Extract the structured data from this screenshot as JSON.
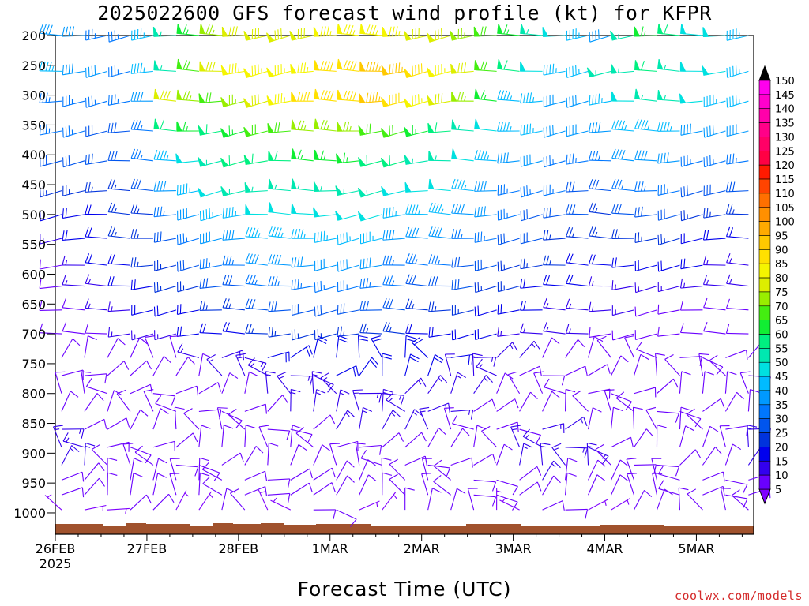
{
  "title": "2025022600 GFS forecast wind profile (kt) for KFPR",
  "credit": "coolwx.com/models",
  "chart_data": {
    "type": "wind-barb profile (time-height)",
    "title": "2025022600 GFS forecast wind profile (kt) for KFPR",
    "xlabel": "Forecast Time (UTC)",
    "ylabel": "",
    "y_axis": {
      "unit": "hPa",
      "reversed": true,
      "range": [
        1030,
        200
      ],
      "ticks": [
        200,
        250,
        300,
        350,
        400,
        450,
        500,
        550,
        600,
        650,
        700,
        750,
        800,
        850,
        900,
        950,
        1000
      ]
    },
    "x_axis": {
      "range_hours": [
        0,
        183
      ],
      "ticks": [
        {
          "hour": 0,
          "label": "26FEB",
          "sublabel": "2025"
        },
        {
          "hour": 24,
          "label": "27FEB"
        },
        {
          "hour": 48,
          "label": "28FEB"
        },
        {
          "hour": 72,
          "label": "1MAR"
        },
        {
          "hour": 96,
          "label": "2MAR"
        },
        {
          "hour": 120,
          "label": "3MAR"
        },
        {
          "hour": 144,
          "label": "4MAR"
        },
        {
          "hour": 168,
          "label": "5MAR"
        }
      ]
    },
    "colorbar": {
      "unit": "kt",
      "levels": [
        5,
        10,
        15,
        20,
        25,
        30,
        35,
        40,
        45,
        50,
        55,
        60,
        65,
        70,
        75,
        80,
        85,
        90,
        95,
        100,
        105,
        110,
        115,
        120,
        125,
        130,
        135,
        140,
        145,
        150
      ]
    },
    "barb_levels_hPa": [
      200,
      260,
      310,
      360,
      410,
      460,
      500,
      540,
      585,
      620,
      660,
      700,
      740,
      770,
      800,
      830,
      860,
      890,
      920,
      945,
      970,
      995
    ],
    "barb_times_hours": [
      0,
      6,
      12,
      18,
      24,
      30,
      36,
      42,
      48,
      54,
      60,
      66,
      72,
      78,
      84,
      90,
      96,
      102,
      108,
      114,
      120,
      126,
      132,
      138,
      144,
      150,
      156,
      162,
      168,
      174,
      180
    ],
    "speed_profile_kt": [
      {
        "p": 200,
        "spd": [
          40,
          40,
          35,
          35,
          45,
          55,
          65,
          75,
          80,
          80,
          80,
          80,
          85,
          85,
          85,
          85,
          80,
          80,
          75,
          70,
          65,
          55,
          50,
          45,
          40,
          55,
          65,
          60,
          50,
          50,
          45
        ]
      },
      {
        "p": 260,
        "spd": [
          45,
          40,
          40,
          35,
          45,
          55,
          70,
          80,
          85,
          85,
          85,
          85,
          90,
          90,
          95,
          95,
          90,
          85,
          80,
          70,
          60,
          50,
          45,
          45,
          55,
          55,
          60,
          55,
          50,
          50,
          45
        ]
      },
      {
        "p": 310,
        "spd": [
          35,
          35,
          35,
          35,
          40,
          80,
          75,
          70,
          75,
          80,
          85,
          90,
          90,
          90,
          95,
          90,
          85,
          80,
          75,
          65,
          45,
          45,
          40,
          40,
          45,
          50,
          55,
          55,
          50,
          45,
          45
        ]
      },
      {
        "p": 360,
        "spd": [
          35,
          35,
          30,
          30,
          35,
          60,
          65,
          60,
          65,
          70,
          70,
          75,
          75,
          75,
          70,
          70,
          65,
          60,
          55,
          50,
          45,
          45,
          40,
          40,
          40,
          45,
          45,
          45,
          40,
          40,
          40
        ]
      },
      {
        "p": 410,
        "spd": [
          30,
          30,
          30,
          30,
          35,
          45,
          50,
          55,
          60,
          60,
          60,
          65,
          65,
          65,
          60,
          60,
          55,
          55,
          50,
          45,
          40,
          40,
          35,
          35,
          35,
          40,
          40,
          40,
          35,
          35,
          35
        ]
      },
      {
        "p": 460,
        "spd": [
          25,
          25,
          25,
          25,
          30,
          40,
          45,
          50,
          55,
          55,
          55,
          55,
          55,
          55,
          55,
          50,
          50,
          50,
          45,
          40,
          35,
          35,
          35,
          30,
          30,
          35,
          35,
          35,
          30,
          30,
          30
        ]
      },
      {
        "p": 500,
        "spd": [
          20,
          20,
          20,
          25,
          25,
          35,
          40,
          45,
          45,
          50,
          50,
          50,
          50,
          50,
          50,
          45,
          45,
          45,
          40,
          40,
          35,
          30,
          30,
          30,
          25,
          30,
          30,
          30,
          25,
          25,
          25
        ]
      },
      {
        "p": 540,
        "spd": [
          15,
          20,
          20,
          25,
          25,
          30,
          35,
          40,
          40,
          45,
          45,
          45,
          45,
          45,
          45,
          40,
          40,
          40,
          35,
          35,
          30,
          30,
          25,
          25,
          25,
          25,
          25,
          25,
          20,
          20,
          20
        ]
      },
      {
        "p": 585,
        "spd": [
          10,
          15,
          20,
          20,
          25,
          25,
          30,
          35,
          35,
          40,
          40,
          40,
          40,
          40,
          40,
          35,
          35,
          35,
          30,
          30,
          25,
          25,
          25,
          20,
          20,
          20,
          20,
          20,
          20,
          15,
          15
        ]
      },
      {
        "p": 620,
        "spd": [
          10,
          15,
          15,
          20,
          20,
          25,
          25,
          30,
          30,
          35,
          35,
          35,
          35,
          35,
          35,
          35,
          30,
          30,
          30,
          25,
          25,
          20,
          20,
          20,
          15,
          15,
          15,
          15,
          15,
          15,
          15
        ]
      },
      {
        "p": 660,
        "spd": [
          10,
          10,
          15,
          15,
          20,
          20,
          20,
          25,
          25,
          30,
          30,
          30,
          30,
          30,
          30,
          30,
          25,
          25,
          25,
          20,
          20,
          20,
          15,
          15,
          15,
          15,
          10,
          10,
          10,
          10,
          10
        ]
      },
      {
        "p": 700,
        "spd": [
          10,
          10,
          10,
          15,
          15,
          15,
          20,
          20,
          20,
          25,
          25,
          25,
          25,
          25,
          25,
          25,
          20,
          20,
          20,
          20,
          15,
          15,
          15,
          15,
          10,
          10,
          10,
          10,
          10,
          10,
          10
        ]
      },
      {
        "p": 740,
        "spd": [
          10,
          10,
          10,
          10,
          10,
          10,
          15,
          15,
          15,
          20,
          20,
          20,
          20,
          20,
          20,
          20,
          20,
          20,
          15,
          15,
          15,
          10,
          10,
          10,
          10,
          10,
          10,
          10,
          10,
          10,
          10
        ]
      },
      {
        "p": 770,
        "spd": [
          10,
          10,
          10,
          10,
          10,
          10,
          10,
          15,
          15,
          15,
          15,
          15,
          20,
          20,
          20,
          20,
          20,
          15,
          15,
          15,
          10,
          10,
          10,
          10,
          10,
          10,
          10,
          10,
          10,
          10,
          10
        ]
      },
      {
        "p": 800,
        "spd": [
          10,
          10,
          10,
          10,
          10,
          10,
          10,
          10,
          10,
          15,
          15,
          15,
          15,
          15,
          15,
          15,
          15,
          15,
          15,
          10,
          10,
          10,
          10,
          10,
          10,
          10,
          10,
          10,
          10,
          10,
          10
        ]
      },
      {
        "p": 830,
        "spd": [
          10,
          10,
          10,
          10,
          10,
          10,
          10,
          10,
          10,
          10,
          15,
          15,
          15,
          15,
          15,
          15,
          15,
          15,
          10,
          10,
          10,
          10,
          10,
          10,
          10,
          10,
          10,
          10,
          10,
          10,
          10
        ]
      },
      {
        "p": 860,
        "spd": [
          15,
          10,
          10,
          10,
          10,
          10,
          10,
          10,
          10,
          10,
          10,
          10,
          15,
          15,
          15,
          15,
          15,
          10,
          10,
          10,
          10,
          15,
          15,
          10,
          10,
          10,
          10,
          10,
          10,
          10,
          15
        ]
      },
      {
        "p": 890,
        "spd": [
          15,
          15,
          10,
          10,
          10,
          10,
          10,
          10,
          10,
          10,
          10,
          10,
          10,
          10,
          10,
          10,
          10,
          10,
          10,
          10,
          15,
          15,
          15,
          15,
          10,
          10,
          10,
          10,
          10,
          10,
          15
        ]
      },
      {
        "p": 920,
        "spd": [
          15,
          15,
          10,
          10,
          10,
          10,
          10,
          10,
          10,
          10,
          10,
          10,
          10,
          10,
          10,
          10,
          10,
          10,
          10,
          10,
          15,
          15,
          15,
          15,
          10,
          10,
          10,
          10,
          10,
          10,
          15
        ]
      },
      {
        "p": 945,
        "spd": [
          10,
          10,
          10,
          10,
          10,
          10,
          10,
          10,
          10,
          10,
          10,
          10,
          10,
          10,
          10,
          10,
          10,
          10,
          10,
          10,
          10,
          15,
          10,
          10,
          10,
          10,
          10,
          10,
          10,
          10,
          10
        ]
      },
      {
        "p": 970,
        "spd": [
          10,
          10,
          10,
          10,
          10,
          10,
          10,
          10,
          10,
          10,
          10,
          10,
          10,
          10,
          10,
          10,
          10,
          10,
          10,
          10,
          10,
          10,
          10,
          10,
          10,
          10,
          10,
          10,
          10,
          10,
          10
        ]
      },
      {
        "p": 995,
        "spd": [
          5,
          5,
          5,
          10,
          10,
          5,
          5,
          10,
          10,
          5,
          5,
          10,
          10,
          5,
          5,
          10,
          10,
          10,
          10,
          5,
          5,
          10,
          10,
          5,
          5,
          10,
          10,
          10,
          10,
          10,
          10
        ]
      }
    ],
    "direction_note": "upper levels predominantly westerly (W-WSW); low levels variable, mostly northerly to easterly"
  },
  "colors": {
    "scale": [
      "#7f00ff",
      "#6a00ff",
      "#3300ee",
      "#0000ee",
      "#0033dd",
      "#0055ee",
      "#0077ff",
      "#0099ff",
      "#00bbff",
      "#00e0e0",
      "#00e8b0",
      "#00f080",
      "#11ee33",
      "#44ee11",
      "#99ee00",
      "#ddee00",
      "#f5f500",
      "#ffe000",
      "#ffc800",
      "#ffaa00",
      "#ff9000",
      "#ff7000",
      "#ff4400",
      "#ff1a00",
      "#ff0044",
      "#ff0066",
      "#ff0088",
      "#ff00aa",
      "#ff00cc",
      "#ff00ee"
    ],
    "ground": "#a0522d",
    "title": "#000000",
    "credit": "#d42a2a"
  }
}
